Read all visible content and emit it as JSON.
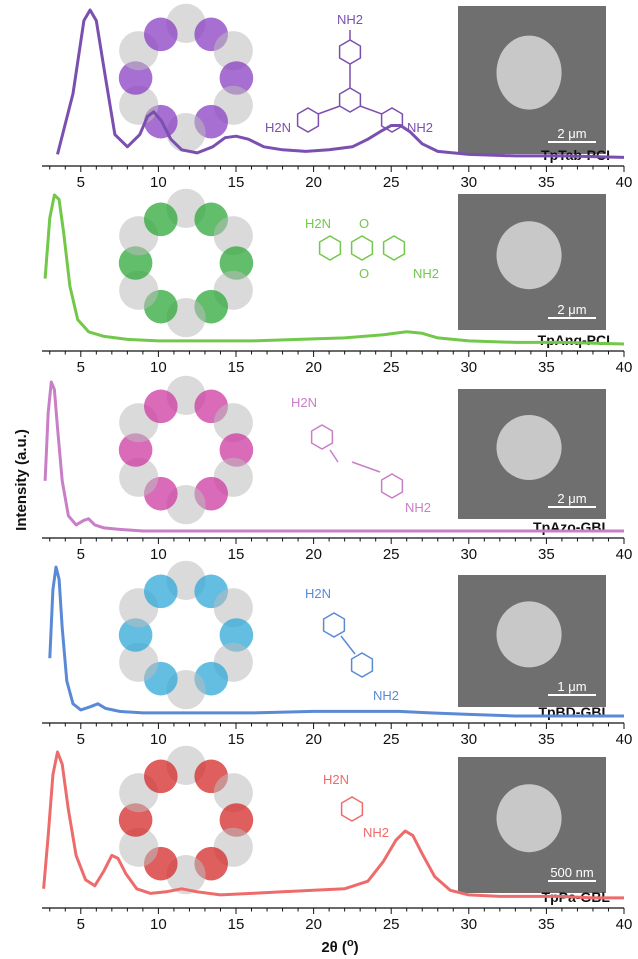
{
  "figure": {
    "ylabel": "Intensity (a.u.)",
    "xlabel": "2θ (°)",
    "xlabel_main": "2θ (",
    "xlabel_deg": "o",
    "xlabel_close": ")",
    "x_ticks": [
      "5",
      "10",
      "15",
      "20",
      "25",
      "30",
      "35",
      "40"
    ]
  },
  "chart_data": [
    {
      "type": "line",
      "series": [
        {
          "name": "TpTab-PCI",
          "color": "#7b4fb0",
          "x": [
            3.5,
            4.5,
            5.2,
            5.6,
            6.0,
            6.6,
            7.2,
            8.0,
            8.8,
            9.3,
            9.7,
            10.2,
            10.8,
            11.5,
            12.5,
            13.5,
            14.3,
            15.0,
            15.8,
            16.8,
            18.0,
            19.5,
            21.0,
            22.5,
            23.5,
            24.3,
            25.0,
            25.6,
            26.2,
            27.0,
            28.0,
            30.0,
            33.0,
            36.0,
            40.0
          ],
          "y": [
            0.05,
            0.45,
            0.93,
            1.0,
            0.93,
            0.55,
            0.18,
            0.1,
            0.18,
            0.3,
            0.33,
            0.27,
            0.15,
            0.08,
            0.06,
            0.1,
            0.16,
            0.17,
            0.15,
            0.1,
            0.08,
            0.07,
            0.08,
            0.1,
            0.15,
            0.2,
            0.24,
            0.24,
            0.2,
            0.12,
            0.07,
            0.05,
            0.04,
            0.04,
            0.03
          ]
        }
      ],
      "sample_label": "TpTab-PCI",
      "xlim": [
        2.5,
        40
      ],
      "ylim": [
        0,
        1
      ],
      "diamine": {
        "top": "NH2",
        "left": "H2N",
        "right": "NH2"
      },
      "scale_bar": "2 μm",
      "framework_color": "#8a3fc2"
    },
    {
      "type": "line",
      "series": [
        {
          "name": "TpAnq-PCI",
          "color": "#72c84a",
          "x": [
            2.7,
            3.0,
            3.3,
            3.6,
            3.9,
            4.3,
            4.8,
            5.5,
            6.5,
            8.0,
            10.0,
            13.0,
            16.0,
            19.0,
            22.0,
            24.5,
            26.0,
            27.0,
            28.0,
            30.0,
            33.0,
            36.0,
            40.0
          ],
          "y": [
            0.45,
            0.85,
            1.0,
            0.97,
            0.75,
            0.4,
            0.18,
            0.1,
            0.07,
            0.05,
            0.04,
            0.04,
            0.04,
            0.05,
            0.06,
            0.08,
            0.1,
            0.09,
            0.06,
            0.04,
            0.03,
            0.03,
            0.02
          ]
        }
      ],
      "sample_label": "TpAnq-PCI",
      "xlim": [
        2.5,
        40
      ],
      "ylim": [
        0,
        1
      ],
      "diamine": {
        "top": "H2N",
        "bottom": "NH2",
        "oxygen": "O"
      },
      "scale_bar": "2 μm",
      "framework_color": "#2ea83a"
    },
    {
      "type": "line",
      "series": [
        {
          "name": "TpAzo-GBL",
          "color": "#c97ec8",
          "x": [
            2.7,
            2.9,
            3.1,
            3.3,
            3.5,
            3.8,
            4.2,
            4.7,
            5.2,
            5.5,
            5.9,
            6.5,
            7.5,
            9.0,
            12.0,
            16.0,
            20.0,
            25.0,
            30.0,
            35.0,
            40.0
          ],
          "y": [
            0.35,
            0.8,
            1.0,
            0.95,
            0.7,
            0.35,
            0.12,
            0.06,
            0.09,
            0.1,
            0.06,
            0.04,
            0.03,
            0.02,
            0.02,
            0.02,
            0.02,
            0.02,
            0.02,
            0.02,
            0.02
          ]
        }
      ],
      "sample_label": "TpAzo-GBL",
      "xlim": [
        2.5,
        40
      ],
      "ylim": [
        0,
        1
      ],
      "diamine": {
        "top": "H2N",
        "bottom": "NH2"
      },
      "scale_bar": "2 μm",
      "framework_color": "#cc3aa0"
    },
    {
      "type": "line",
      "series": [
        {
          "name": "TpBD-GBL",
          "color": "#5a8ad6",
          "x": [
            3.0,
            3.2,
            3.4,
            3.6,
            3.8,
            4.1,
            4.5,
            5.0,
            5.6,
            6.1,
            6.6,
            7.5,
            9.0,
            12.0,
            16.0,
            20.0,
            23.0,
            25.5,
            27.5,
            30.0,
            33.0,
            36.0,
            40.0
          ],
          "y": [
            0.4,
            0.85,
            1.0,
            0.92,
            0.6,
            0.25,
            0.1,
            0.06,
            0.08,
            0.1,
            0.07,
            0.05,
            0.04,
            0.04,
            0.04,
            0.05,
            0.05,
            0.05,
            0.04,
            0.03,
            0.02,
            0.02,
            0.02
          ]
        }
      ],
      "sample_label": "TpBD-GBL",
      "xlim": [
        2.5,
        40
      ],
      "ylim": [
        0,
        1
      ],
      "diamine": {
        "top": "H2N",
        "bottom": "NH2"
      },
      "scale_bar": "1 μm",
      "framework_color": "#2fa8d8"
    },
    {
      "type": "line",
      "series": [
        {
          "name": "TpPa-GBL",
          "color": "#ee6b6b",
          "x": [
            2.6,
            2.9,
            3.2,
            3.5,
            3.8,
            4.2,
            4.7,
            5.3,
            5.9,
            6.5,
            7.0,
            7.4,
            7.9,
            8.6,
            9.5,
            10.5,
            11.5,
            12.5,
            14.0,
            16.0,
            18.0,
            20.0,
            22.0,
            23.5,
            24.5,
            25.3,
            25.9,
            26.4,
            27.0,
            27.8,
            28.8,
            30.0,
            32.0,
            34.0,
            36.0,
            38.0,
            40.0
          ],
          "y": [
            0.1,
            0.45,
            0.85,
            1.0,
            0.92,
            0.62,
            0.32,
            0.16,
            0.12,
            0.22,
            0.32,
            0.3,
            0.2,
            0.1,
            0.07,
            0.08,
            0.1,
            0.08,
            0.06,
            0.07,
            0.08,
            0.09,
            0.1,
            0.15,
            0.28,
            0.42,
            0.48,
            0.45,
            0.33,
            0.18,
            0.09,
            0.06,
            0.05,
            0.05,
            0.05,
            0.04,
            0.04
          ]
        }
      ],
      "sample_label": "TpPa-GBL",
      "xlim": [
        2.5,
        40
      ],
      "ylim": [
        0,
        1
      ],
      "diamine": {
        "top": "H2N",
        "bottom": "NH2"
      },
      "scale_bar": "500 nm",
      "framework_color": "#d42a2a"
    }
  ]
}
